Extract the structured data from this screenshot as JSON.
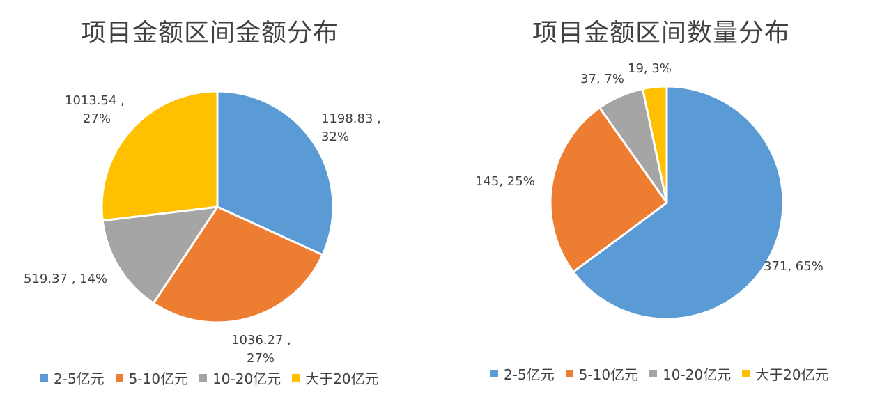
{
  "chart_data": [
    {
      "type": "pie",
      "title": "项目金额区间金额分布",
      "categories": [
        "2-5亿元",
        "5-10亿元",
        "10-20亿元",
        "大于20亿元"
      ],
      "values": [
        1198.83,
        1036.27,
        519.37,
        1013.54
      ],
      "percent_labels": [
        "32%",
        "27%",
        "14%",
        "27%"
      ],
      "value_labels": [
        "1198.83 ,",
        "1036.27 ,",
        "519.37 , 14%",
        "1013.54 ,"
      ],
      "value_labels_line2": [
        "32%",
        "27%",
        "",
        "27%"
      ],
      "colors": [
        "#5B9BD5",
        "#ED7D31",
        "#A5A5A5",
        "#FFC000"
      ],
      "legend_position": "bottom"
    },
    {
      "type": "pie",
      "title": "项目金额区间数量分布",
      "categories": [
        "2-5亿元",
        "5-10亿元",
        "10-20亿元",
        "大于20亿元"
      ],
      "values": [
        371,
        145,
        37,
        19
      ],
      "percent_labels": [
        "65%",
        "25%",
        "7%",
        "3%"
      ],
      "value_labels": [
        "371, 65%",
        "145, 25%",
        "37, 7%",
        "19, 3%"
      ],
      "colors": [
        "#5B9BD5",
        "#ED7D31",
        "#A5A5A5",
        "#FFC000"
      ],
      "legend_position": "bottom"
    }
  ],
  "legend": [
    {
      "label": "2-5亿元",
      "color": "#5B9BD5"
    },
    {
      "label": "5-10亿元",
      "color": "#ED7D31"
    },
    {
      "label": "10-20亿元",
      "color": "#A5A5A5"
    },
    {
      "label": "大于20亿元",
      "color": "#FFC000"
    }
  ]
}
